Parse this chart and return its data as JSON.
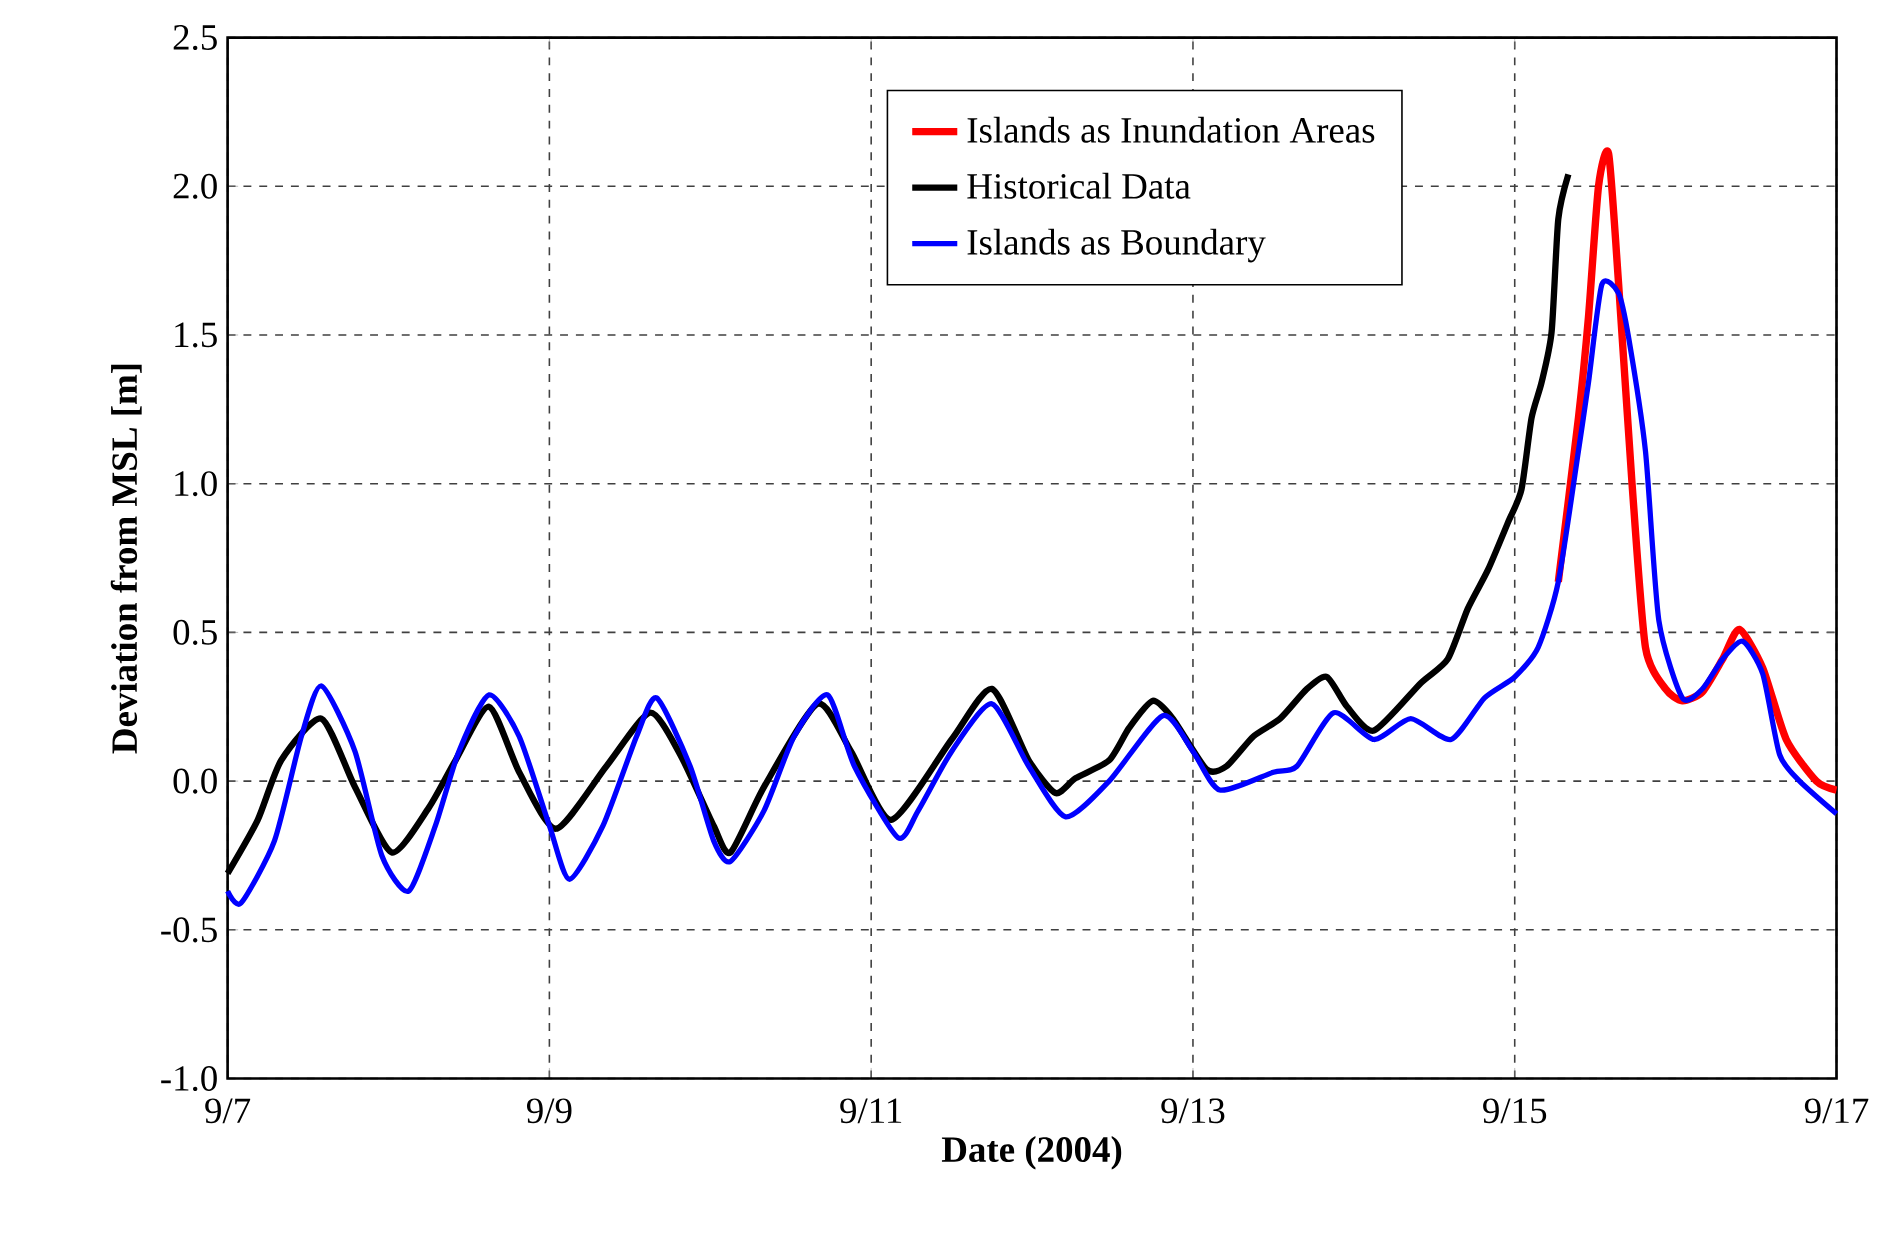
{
  "chart_data": {
    "type": "line",
    "xlabel": "Date (2004)",
    "ylabel": "Deviation from MSL [m]",
    "xlim": [
      "2004-09-07",
      "2004-09-17"
    ],
    "xticks": [
      {
        "value": "2004-09-07",
        "label": "9/7"
      },
      {
        "value": "2004-09-09",
        "label": "9/9"
      },
      {
        "value": "2004-09-11",
        "label": "9/11"
      },
      {
        "value": "2004-09-13",
        "label": "9/13"
      },
      {
        "value": "2004-09-15",
        "label": "9/15"
      },
      {
        "value": "2004-09-17",
        "label": "9/17"
      }
    ],
    "ylim": [
      -1.0,
      2.5
    ],
    "yticks": [
      {
        "value": -1.0,
        "label": "-1.0"
      },
      {
        "value": -0.5,
        "label": "-0.5"
      },
      {
        "value": 0.0,
        "label": "0.0"
      },
      {
        "value": 0.5,
        "label": "0.5"
      },
      {
        "value": 1.0,
        "label": "1.0"
      },
      {
        "value": 1.5,
        "label": "1.5"
      },
      {
        "value": 2.0,
        "label": "2.0"
      },
      {
        "value": 2.5,
        "label": "2.5"
      }
    ],
    "grid": true,
    "legend": "top",
    "series": [
      {
        "name": "Islands as Inundation Areas",
        "color": "#ff0000",
        "x": [
          "2004-09-15T06:30",
          "2004-09-15T09:30",
          "2004-09-15T11:00",
          "2004-09-15T12:30",
          "2004-09-15T14:00",
          "2004-09-15T15:30",
          "2004-09-15T17:30",
          "2004-09-15T19:30",
          "2004-09-15T22:30",
          "2004-09-16T01:00",
          "2004-09-16T04:00",
          "2004-09-16T07:00",
          "2004-09-16T09:30",
          "2004-09-16T13:00",
          "2004-09-16T16:30",
          "2004-09-16T21:00",
          "2004-09-17T00:00"
        ],
        "values": [
          0.67,
          1.22,
          1.56,
          2.0,
          2.11,
          1.67,
          1.0,
          0.45,
          0.31,
          0.27,
          0.3,
          0.41,
          0.51,
          0.38,
          0.14,
          0.0,
          -0.03
        ]
      },
      {
        "name": "Historical Data",
        "color": "#000000",
        "x": [
          "2004-09-07T00:00",
          "2004-09-07T04:30",
          "2004-09-07T08:00",
          "2004-09-07T14:00",
          "2004-09-07T19:00",
          "2004-09-08T00:30",
          "2004-09-08T06:00",
          "2004-09-08T10:00",
          "2004-09-08T15:00",
          "2004-09-08T19:30",
          "2004-09-09T01:00",
          "2004-09-09T08:30",
          "2004-09-09T15:00",
          "2004-09-09T19:30",
          "2004-09-10T00:30",
          "2004-09-10T03:00",
          "2004-09-10T08:00",
          "2004-09-10T16:00",
          "2004-09-10T21:00",
          "2004-09-11T03:00",
          "2004-09-11T12:00",
          "2004-09-11T18:00",
          "2004-09-11T23:30",
          "2004-09-12T03:30",
          "2004-09-12T06:30",
          "2004-09-12T11:30",
          "2004-09-12T14:30",
          "2004-09-12T18:00",
          "2004-09-12T21:00",
          "2004-09-13T02:00",
          "2004-09-13T05:00",
          "2004-09-13T09:00",
          "2004-09-13T13:00",
          "2004-09-13T17:00",
          "2004-09-13T20:00",
          "2004-09-13T23:00",
          "2004-09-14T03:00",
          "2004-09-14T10:00",
          "2004-09-14T14:00",
          "2004-09-14T17:00",
          "2004-09-14T20:00",
          "2004-09-14T23:00",
          "2004-09-15T01:00",
          "2004-09-15T02:30",
          "2004-09-15T04:00",
          "2004-09-15T05:30",
          "2004-09-15T06:30",
          "2004-09-15T08:00"
        ],
        "values": [
          -0.31,
          -0.13,
          0.07,
          0.21,
          -0.02,
          -0.24,
          -0.09,
          0.07,
          0.25,
          0.03,
          -0.16,
          0.05,
          0.23,
          0.09,
          -0.15,
          -0.24,
          -0.02,
          0.26,
          0.1,
          -0.13,
          0.14,
          0.31,
          0.07,
          -0.04,
          0.01,
          0.07,
          0.18,
          0.27,
          0.21,
          0.04,
          0.05,
          0.15,
          0.21,
          0.31,
          0.35,
          0.25,
          0.17,
          0.33,
          0.41,
          0.58,
          0.71,
          0.87,
          0.98,
          1.22,
          1.34,
          1.51,
          1.89,
          2.04
        ]
      },
      {
        "name": "Islands as Boundary",
        "color": "#0000ff",
        "x": [
          "2004-09-07T00:00",
          "2004-09-07T02:00",
          "2004-09-07T07:00",
          "2004-09-07T11:00",
          "2004-09-07T14:00",
          "2004-09-07T19:00",
          "2004-09-07T23:00",
          "2004-09-08T03:00",
          "2004-09-08T07:00",
          "2004-09-08T10:30",
          "2004-09-08T15:00",
          "2004-09-08T19:30",
          "2004-09-09T00:00",
          "2004-09-09T03:00",
          "2004-09-09T08:00",
          "2004-09-09T13:00",
          "2004-09-09T16:00",
          "2004-09-09T21:00",
          "2004-09-10T00:30",
          "2004-09-10T03:00",
          "2004-09-10T08:00",
          "2004-09-10T12:30",
          "2004-09-10T17:30",
          "2004-09-10T21:30",
          "2004-09-11T04:00",
          "2004-09-11T07:00",
          "2004-09-11T12:00",
          "2004-09-11T18:00",
          "2004-09-11T23:30",
          "2004-09-12T05:00",
          "2004-09-12T11:30",
          "2004-09-12T19:30",
          "2004-09-13T00:00",
          "2004-09-13T04:00",
          "2004-09-13T12:00",
          "2004-09-13T15:30",
          "2004-09-13T21:00",
          "2004-09-14T03:00",
          "2004-09-14T08:30",
          "2004-09-14T14:30",
          "2004-09-14T19:30",
          "2004-09-15T00:00",
          "2004-09-15T03:30",
          "2004-09-15T06:30",
          "2004-09-15T09:30",
          "2004-09-15T11:00",
          "2004-09-15T13:00",
          "2004-09-15T15:30",
          "2004-09-15T17:00",
          "2004-09-15T19:30",
          "2004-09-15T21:30",
          "2004-09-16T01:00",
          "2004-09-16T04:00",
          "2004-09-16T07:00",
          "2004-09-16T10:00",
          "2004-09-16T13:00",
          "2004-09-16T15:30",
          "2004-09-16T18:30",
          "2004-09-17T00:00"
        ],
        "values": [
          -0.37,
          -0.41,
          -0.2,
          0.15,
          0.32,
          0.1,
          -0.25,
          -0.37,
          -0.15,
          0.1,
          0.29,
          0.15,
          -0.15,
          -0.33,
          -0.15,
          0.15,
          0.28,
          0.05,
          -0.2,
          -0.27,
          -0.1,
          0.15,
          0.29,
          0.05,
          -0.19,
          -0.1,
          0.1,
          0.26,
          0.05,
          -0.12,
          0.0,
          0.22,
          0.1,
          -0.03,
          0.03,
          0.05,
          0.23,
          0.14,
          0.21,
          0.14,
          0.28,
          0.35,
          0.45,
          0.67,
          1.11,
          1.34,
          1.67,
          1.64,
          1.49,
          1.11,
          0.54,
          0.28,
          0.31,
          0.41,
          0.47,
          0.36,
          0.09,
          0.0,
          -0.11
        ]
      }
    ]
  }
}
